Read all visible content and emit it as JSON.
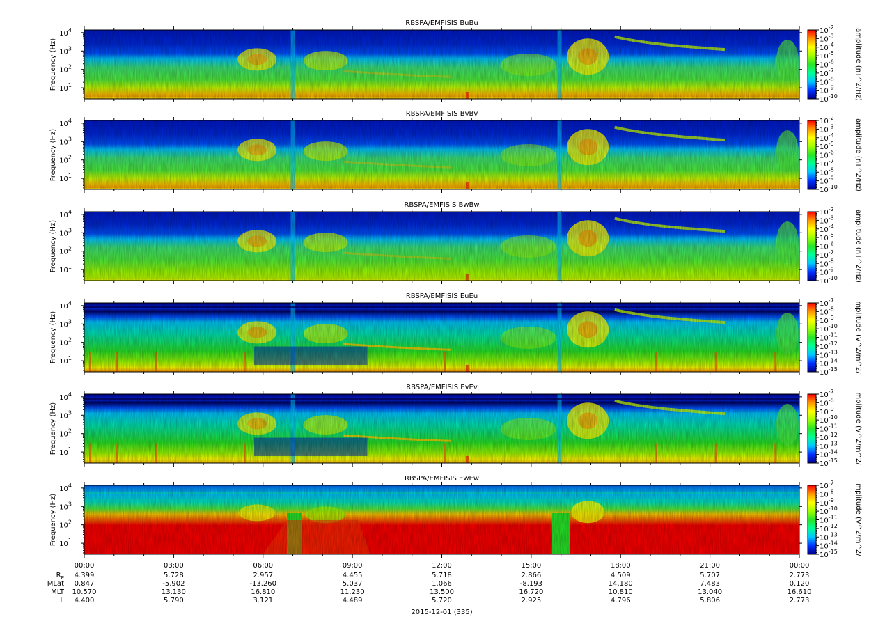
{
  "chart_data": {
    "type": "heatmap",
    "date_label": "2015-12-01 (335)",
    "x_ticks": [
      "00:00",
      "03:00",
      "06:00",
      "09:00",
      "12:00",
      "15:00",
      "18:00",
      "21:00",
      "00:00"
    ],
    "ephemeris": {
      "labels": [
        "R",
        "MLat",
        "MLT",
        "L"
      ],
      "re_subscript": "E",
      "rows": [
        [
          "4.399",
          "5.728",
          "2.957",
          "4.455",
          "5.718",
          "2.866",
          "4.509",
          "5.707",
          "2.773"
        ],
        [
          "0.847",
          "-5.902",
          "-13.260",
          "5.037",
          "1.066",
          "-8.193",
          "14.180",
          "7.483",
          "0.120"
        ],
        [
          "10.570",
          "13.130",
          "16.810",
          "11.230",
          "13.500",
          "16.720",
          "10.810",
          "13.040",
          "16.610"
        ],
        [
          "4.400",
          "5.790",
          "3.121",
          "4.489",
          "5.720",
          "2.925",
          "4.796",
          "5.806",
          "2.773"
        ]
      ]
    },
    "panels": [
      {
        "title": "RBSPA/EMFISIS  BuBu",
        "ylabel": "Frequency (Hz)",
        "yscale": "log",
        "y_ticks": [
          "10",
          "10",
          "10",
          "10"
        ],
        "y_tick_exps": [
          "1",
          "2",
          "3",
          "4"
        ],
        "zlabel": "amplitude (nT^2/Hz)",
        "z_exp_min": -10,
        "z_exp_max": -2,
        "z_ticks": [
          "-2",
          "-3",
          "-4",
          "-5",
          "-6",
          "-7",
          "-8",
          "-9",
          "-10"
        ]
      },
      {
        "title": "RBSPA/EMFISIS  BvBv",
        "ylabel": "Frequency (Hz)",
        "yscale": "log",
        "y_ticks": [
          "10",
          "10",
          "10",
          "10"
        ],
        "y_tick_exps": [
          "1",
          "2",
          "3",
          "4"
        ],
        "zlabel": "amplitude (nT^2/Hz)",
        "z_exp_min": -10,
        "z_exp_max": -2,
        "z_ticks": [
          "-2",
          "-3",
          "-4",
          "-5",
          "-6",
          "-7",
          "-8",
          "-9",
          "-10"
        ]
      },
      {
        "title": "RBSPA/EMFISIS  BwBw",
        "ylabel": "Frequency (Hz)",
        "yscale": "log",
        "y_ticks": [
          "10",
          "10",
          "10",
          "10"
        ],
        "y_tick_exps": [
          "1",
          "2",
          "3",
          "4"
        ],
        "zlabel": "amplitude (nT^2/Hz)",
        "z_exp_min": -10,
        "z_exp_max": -2,
        "z_ticks": [
          "-2",
          "-3",
          "-4",
          "-5",
          "-6",
          "-7",
          "-8",
          "-9",
          "-10"
        ]
      },
      {
        "title": "RBSPA/EMFISIS  EuEu",
        "ylabel": "Frequency (Hz)",
        "yscale": "log",
        "y_ticks": [
          "10",
          "10",
          "10",
          "10"
        ],
        "y_tick_exps": [
          "1",
          "2",
          "3",
          "4"
        ],
        "zlabel": "mplitude (V^2/m^2/",
        "z_exp_min": -15,
        "z_exp_max": -7,
        "z_ticks": [
          "-7",
          "-8",
          "-9",
          "-10",
          "-11",
          "-12",
          "-13",
          "-14",
          "-15"
        ]
      },
      {
        "title": "RBSPA/EMFISIS  EvEv",
        "ylabel": "Frequency (Hz)",
        "yscale": "log",
        "y_ticks": [
          "10",
          "10",
          "10",
          "10"
        ],
        "y_tick_exps": [
          "1",
          "2",
          "3",
          "4"
        ],
        "zlabel": "mplitude (V^2/m^2/",
        "z_exp_min": -15,
        "z_exp_max": -7,
        "z_ticks": [
          "-7",
          "-8",
          "-9",
          "-10",
          "-11",
          "-12",
          "-13",
          "-14",
          "-15"
        ]
      },
      {
        "title": "RBSPA/EMFISIS  EwEw",
        "ylabel": "Frequency (Hz)",
        "yscale": "log",
        "y_ticks": [
          "10",
          "10",
          "10",
          "10"
        ],
        "y_tick_exps": [
          "1",
          "2",
          "3",
          "4"
        ],
        "zlabel": "mplitude (V^2/m^2/",
        "z_exp_min": -15,
        "z_exp_max": -7,
        "z_ticks": [
          "-7",
          "-8",
          "-9",
          "-10",
          "-11",
          "-12",
          "-13",
          "-14",
          "-15"
        ]
      }
    ],
    "colormap": [
      "#00008c",
      "#0030ff",
      "#00c8ff",
      "#00ff96",
      "#28e628",
      "#a0ff00",
      "#ffff00",
      "#ff9600",
      "#ff0000"
    ]
  }
}
